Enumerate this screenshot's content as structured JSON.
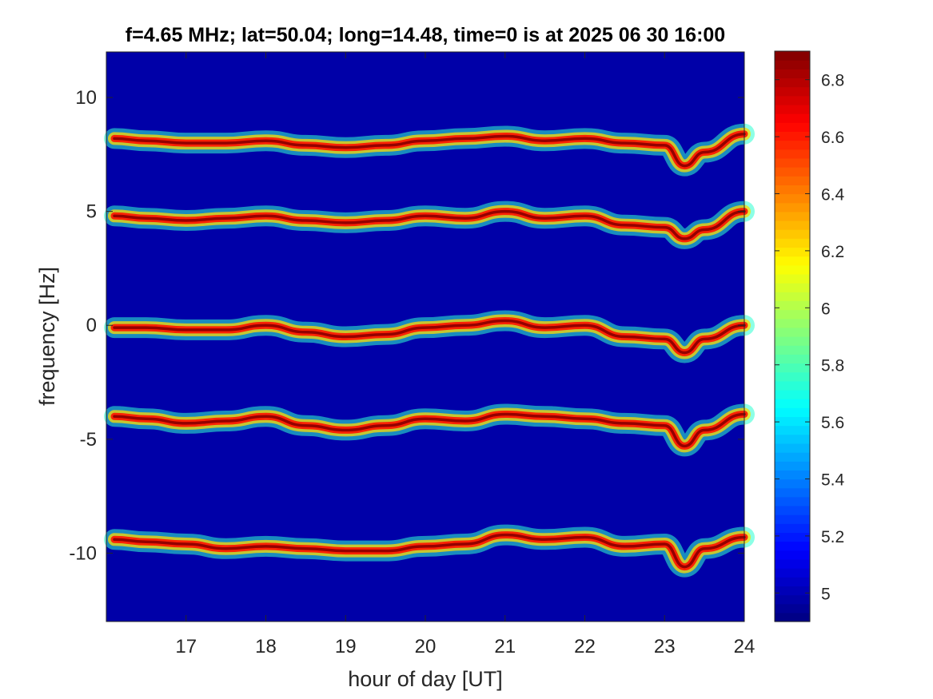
{
  "chart_data": {
    "type": "heatmap",
    "title": "f=4.65 MHz;  lat=50.04; long=14.48, time=0 is at 2025 06 30 16:00",
    "xlabel": "hour of day [UT]",
    "ylabel": "frequency [Hz]",
    "xlim": [
      16.0,
      24.0
    ],
    "ylim": [
      -13,
      12
    ],
    "xticks": [
      17,
      18,
      19,
      20,
      21,
      22,
      23,
      24
    ],
    "xtick_labels": [
      "17",
      "18",
      "19",
      "20",
      "21",
      "22",
      "23",
      "24"
    ],
    "yticks": [
      -10,
      -5,
      0,
      5,
      10
    ],
    "ytick_labels": [
      "-10",
      "-5",
      "0",
      "5",
      "10"
    ],
    "colorbar": {
      "range": [
        4.9,
        6.9
      ],
      "ticks": [
        5.0,
        5.2,
        5.4,
        5.6,
        5.8,
        6.0,
        6.2,
        6.4,
        6.6,
        6.8
      ],
      "tick_labels": [
        "5",
        "5.2",
        "5.4",
        "5.6",
        "5.8",
        "6",
        "6.2",
        "6.4",
        "6.6",
        "6.8"
      ],
      "colormap": "jet"
    },
    "background_value": 4.9,
    "background_color": "#0000a8",
    "grid": false,
    "bands": [
      {
        "x": [
          16.1,
          16.5,
          17.0,
          17.5,
          18.0,
          18.5,
          19.0,
          19.5,
          20.0,
          20.5,
          21.0,
          21.5,
          22.0,
          22.5,
          23.0,
          23.25,
          23.5,
          24.0
        ],
        "y": [
          8.2,
          8.1,
          8.0,
          8.0,
          8.1,
          7.9,
          7.8,
          7.9,
          8.1,
          8.2,
          8.3,
          8.1,
          8.2,
          8.0,
          7.9,
          7.0,
          7.6,
          8.4
        ]
      },
      {
        "x": [
          16.1,
          16.5,
          17.0,
          17.5,
          18.0,
          18.5,
          19.0,
          19.5,
          20.0,
          20.5,
          21.0,
          21.5,
          22.0,
          22.5,
          23.0,
          23.25,
          23.5,
          24.0
        ],
        "y": [
          4.8,
          4.7,
          4.6,
          4.7,
          4.8,
          4.6,
          4.5,
          4.6,
          4.8,
          4.7,
          5.0,
          4.7,
          4.8,
          4.4,
          4.3,
          3.8,
          4.2,
          5.0
        ]
      },
      {
        "x": [
          16.1,
          16.5,
          17.0,
          17.5,
          18.0,
          18.5,
          19.0,
          19.5,
          20.0,
          20.5,
          21.0,
          21.5,
          22.0,
          22.5,
          23.0,
          23.25,
          23.5,
          24.0
        ],
        "y": [
          -0.1,
          -0.1,
          -0.2,
          -0.2,
          0.0,
          -0.3,
          -0.5,
          -0.4,
          -0.1,
          0.0,
          0.2,
          -0.1,
          0.0,
          -0.5,
          -0.6,
          -1.2,
          -0.6,
          0.0
        ]
      },
      {
        "x": [
          16.1,
          16.5,
          17.0,
          17.5,
          18.0,
          18.5,
          19.0,
          19.5,
          20.0,
          20.5,
          21.0,
          21.5,
          22.0,
          22.5,
          23.0,
          23.25,
          23.5,
          24.0
        ],
        "y": [
          -4.0,
          -4.1,
          -4.3,
          -4.2,
          -4.0,
          -4.4,
          -4.6,
          -4.4,
          -4.1,
          -4.2,
          -3.9,
          -4.0,
          -4.1,
          -4.3,
          -4.4,
          -5.3,
          -4.6,
          -3.9
        ]
      },
      {
        "x": [
          16.1,
          16.5,
          17.0,
          17.5,
          18.0,
          18.5,
          19.0,
          19.5,
          20.0,
          20.5,
          21.0,
          21.5,
          22.0,
          22.5,
          23.0,
          23.25,
          23.5,
          24.0
        ],
        "y": [
          -9.4,
          -9.5,
          -9.6,
          -9.8,
          -9.7,
          -9.8,
          -9.9,
          -9.9,
          -9.7,
          -9.6,
          -9.2,
          -9.4,
          -9.3,
          -9.7,
          -9.6,
          -10.6,
          -9.8,
          -9.3
        ]
      }
    ]
  }
}
